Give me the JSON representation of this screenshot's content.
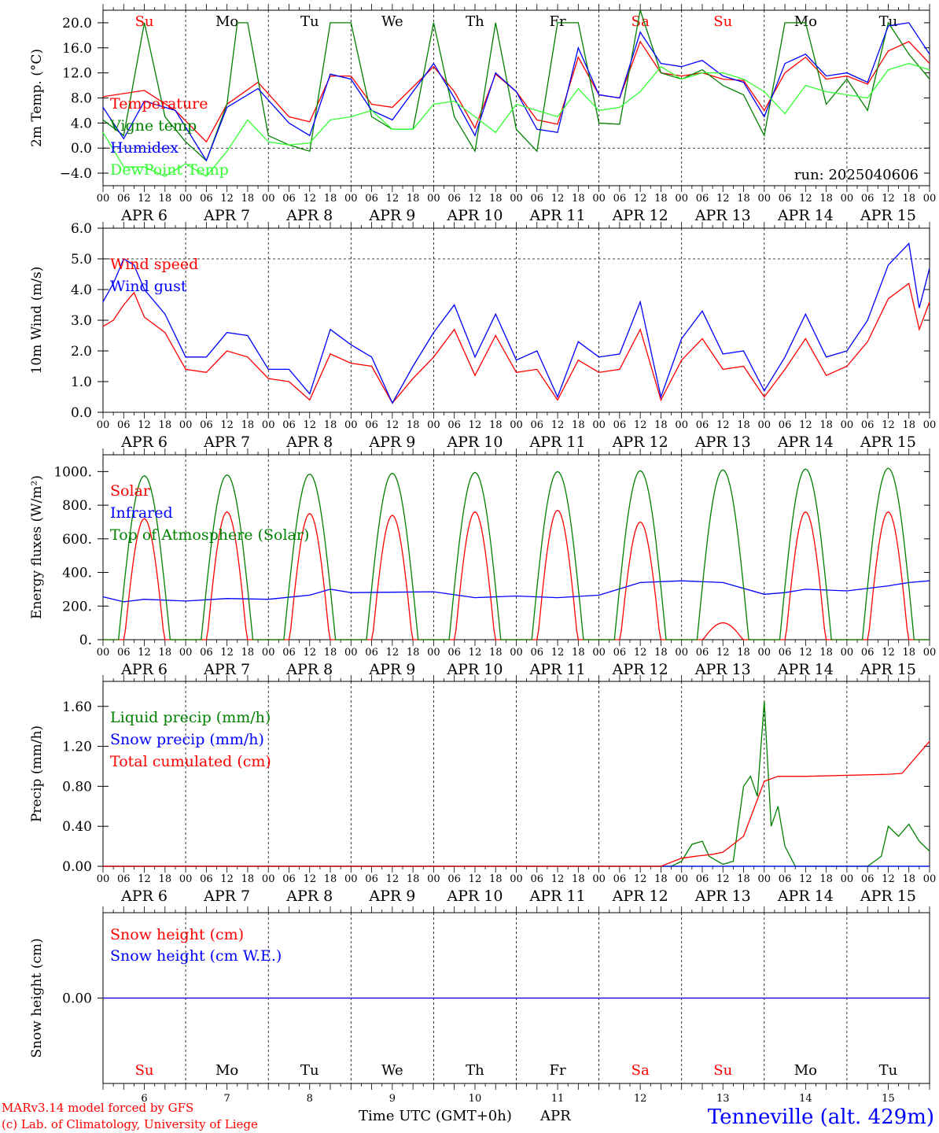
{
  "days": [
    {
      "label": "APR  6",
      "dow": "Su",
      "num": "6",
      "weekend": true
    },
    {
      "label": "APR  7",
      "dow": "Mo",
      "num": "7",
      "weekend": false
    },
    {
      "label": "APR  8",
      "dow": "Tu",
      "num": "8",
      "weekend": false
    },
    {
      "label": "APR  9",
      "dow": "We",
      "num": "9",
      "weekend": false
    },
    {
      "label": "APR 10",
      "dow": "Th",
      "num": "10",
      "weekend": false
    },
    {
      "label": "APR 11",
      "dow": "Fr",
      "num": "11",
      "weekend": false
    },
    {
      "label": "APR 12",
      "dow": "Sa",
      "num": "12",
      "weekend": true
    },
    {
      "label": "APR 13",
      "dow": "Su",
      "num": "13",
      "weekend": true
    },
    {
      "label": "APR 14",
      "dow": "Mo",
      "num": "14",
      "weekend": false
    },
    {
      "label": "APR 15",
      "dow": "Tu",
      "num": "15",
      "weekend": false
    }
  ],
  "hour_ticks": [
    "00",
    "06",
    "12",
    "18"
  ],
  "colors": {
    "red": "#ff0000",
    "green": "#008000",
    "blue": "#0000ff",
    "lightgreen": "#33ff33"
  },
  "footer": {
    "model": "MARv3.14 model forced by GFS",
    "credit": "(c) Lab. of Climatology, University of Liege",
    "xlabel": "Time UTC (GMT+0h)",
    "month": "APR",
    "location": "Tenneville (alt. 429m)"
  },
  "chart_data": [
    {
      "id": "temp",
      "type": "line",
      "ylabel": "2m Temp. (°C)",
      "ylim": [
        -6,
        22
      ],
      "yticks": [
        -4,
        0,
        4,
        8,
        12,
        16,
        20
      ],
      "ytick_labels": [
        "−4.0",
        "0.0",
        "4.0",
        "8.0",
        "12.0",
        "16.0",
        "20.0"
      ],
      "zero_line": 0,
      "annotation": "run: 2025040606",
      "series": [
        {
          "name": "Temperature",
          "color": "red",
          "x": [
            0,
            12,
            21,
            30,
            36,
            45,
            54,
            60,
            66,
            72,
            78,
            84,
            96,
            102,
            108,
            114,
            120,
            126,
            132,
            138,
            144,
            150,
            156,
            162,
            168,
            174,
            180,
            186,
            192,
            198,
            204,
            210,
            216,
            222,
            228,
            234,
            240
          ],
          "y": [
            8.2,
            9.2,
            6.0,
            1.0,
            7.0,
            10.5,
            5.0,
            4.2,
            11.5,
            11.5,
            7.0,
            6.5,
            13.0,
            9.0,
            3.2,
            11.8,
            9.0,
            4.5,
            3.8,
            14.5,
            8.5,
            8.0,
            17.0,
            12.0,
            11.5,
            12.0,
            11.0,
            10.8,
            6.0,
            12.0,
            14.5,
            11.0,
            11.5,
            10.2,
            15.5,
            17.0,
            13.5
          ]
        },
        {
          "name": "Vigne temp",
          "color": "green",
          "x": [
            0,
            6,
            12,
            18,
            24,
            30,
            36,
            39,
            42,
            48,
            54,
            60,
            66,
            72,
            78,
            84,
            90,
            96,
            102,
            108,
            114,
            120,
            126,
            132,
            138,
            144,
            150,
            156,
            162,
            168,
            174,
            180,
            186,
            192,
            198,
            204,
            210,
            216,
            222,
            228,
            234,
            240
          ],
          "y": [
            4.5,
            2.0,
            20.0,
            5.0,
            1.0,
            -2.0,
            7.0,
            20.0,
            20.0,
            2.0,
            0.5,
            -0.5,
            20.0,
            20.0,
            5.0,
            3.0,
            3.0,
            20.0,
            5.0,
            -0.5,
            20.0,
            3.0,
            -0.5,
            20.0,
            20.0,
            4.0,
            3.8,
            22.0,
            12.0,
            11.0,
            12.5,
            10.0,
            8.5,
            2.0,
            20.0,
            20.0,
            7.0,
            11.0,
            6.0,
            20.0,
            15.0,
            11.0
          ]
        },
        {
          "name": "Humidex",
          "color": "blue",
          "x": [
            0,
            6,
            12,
            21,
            30,
            36,
            45,
            54,
            60,
            66,
            72,
            78,
            84,
            96,
            102,
            108,
            114,
            120,
            126,
            132,
            138,
            144,
            150,
            156,
            162,
            168,
            174,
            180,
            186,
            192,
            198,
            204,
            210,
            216,
            222,
            228,
            234,
            240
          ],
          "y": [
            6.5,
            1.5,
            7.5,
            6.0,
            -2.0,
            6.5,
            9.5,
            4.0,
            2.0,
            11.8,
            11.0,
            6.0,
            4.5,
            13.5,
            8.0,
            2.0,
            12.0,
            9.0,
            3.0,
            2.5,
            16.0,
            8.5,
            8.0,
            18.5,
            13.5,
            13.0,
            14.0,
            11.5,
            10.5,
            5.0,
            13.5,
            15.0,
            11.5,
            12.0,
            10.5,
            19.5,
            20.0,
            15.0
          ]
        },
        {
          "name": "DewPoint Temp",
          "color": "lightgreen",
          "x": [
            0,
            6,
            12,
            18,
            24,
            30,
            36,
            42,
            48,
            54,
            60,
            66,
            72,
            78,
            84,
            90,
            96,
            102,
            108,
            114,
            120,
            126,
            132,
            138,
            144,
            150,
            156,
            162,
            168,
            174,
            180,
            186,
            192,
            198,
            204,
            210,
            216,
            222,
            228,
            234,
            240
          ],
          "y": [
            2.5,
            -3.0,
            -3.0,
            -4.5,
            -2.5,
            -4.5,
            -0.5,
            4.5,
            1.0,
            0.5,
            0.8,
            4.5,
            5.0,
            6.0,
            3.0,
            3.0,
            7.0,
            7.5,
            5.0,
            2.5,
            7.0,
            6.0,
            5.0,
            9.5,
            6.0,
            6.5,
            9.0,
            13.0,
            11.0,
            12.0,
            12.0,
            11.0,
            9.0,
            5.5,
            10.0,
            9.0,
            8.5,
            8.0,
            12.5,
            13.5,
            12.5
          ]
        }
      ]
    },
    {
      "id": "wind",
      "type": "line",
      "ylabel": "10m Wind (m/s)",
      "ylim": [
        0,
        6
      ],
      "yticks": [
        0,
        1,
        2,
        3,
        4,
        5,
        6
      ],
      "ytick_labels": [
        "0.0",
        "1.0",
        "2.0",
        "3.0",
        "4.0",
        "5.0",
        "6.0"
      ],
      "ref_line": 5,
      "series": [
        {
          "name": "Wind speed",
          "color": "red",
          "x": [
            0,
            3,
            6,
            9,
            12,
            18,
            24,
            30,
            36,
            42,
            48,
            54,
            60,
            66,
            72,
            78,
            84,
            90,
            96,
            102,
            108,
            114,
            120,
            126,
            132,
            138,
            144,
            150,
            156,
            162,
            168,
            174,
            180,
            186,
            192,
            198,
            204,
            210,
            216,
            222,
            228,
            234,
            237,
            240
          ],
          "y": [
            2.8,
            3.0,
            3.5,
            3.9,
            3.1,
            2.6,
            1.4,
            1.3,
            2.0,
            1.8,
            1.1,
            1.0,
            0.4,
            1.9,
            1.6,
            1.5,
            0.3,
            1.1,
            1.8,
            2.7,
            1.2,
            2.5,
            1.3,
            1.4,
            0.4,
            1.7,
            1.3,
            1.4,
            2.7,
            0.4,
            1.7,
            2.4,
            1.4,
            1.5,
            0.5,
            1.4,
            2.4,
            1.2,
            1.5,
            2.3,
            3.7,
            4.2,
            2.7,
            3.6
          ]
        },
        {
          "name": "Wind gust",
          "color": "blue",
          "x": [
            0,
            3,
            6,
            9,
            12,
            18,
            24,
            30,
            36,
            42,
            48,
            54,
            60,
            66,
            72,
            78,
            84,
            90,
            96,
            102,
            108,
            114,
            120,
            126,
            132,
            138,
            144,
            150,
            156,
            162,
            168,
            174,
            180,
            186,
            192,
            198,
            204,
            210,
            216,
            222,
            228,
            234,
            237,
            240
          ],
          "y": [
            3.6,
            4.2,
            5.0,
            4.8,
            4.0,
            3.2,
            1.8,
            1.8,
            2.6,
            2.5,
            1.4,
            1.4,
            0.6,
            2.7,
            2.2,
            1.8,
            0.3,
            1.5,
            2.6,
            3.5,
            1.8,
            3.2,
            1.7,
            2.0,
            0.5,
            2.3,
            1.8,
            1.9,
            3.6,
            0.5,
            2.4,
            3.3,
            1.9,
            2.0,
            0.7,
            1.8,
            3.2,
            1.8,
            2.0,
            3.0,
            4.8,
            5.5,
            3.4,
            4.7
          ]
        }
      ]
    },
    {
      "id": "flux",
      "type": "line",
      "ylabel": "Energy fluxes (W/m²)",
      "ylim": [
        0,
        1100
      ],
      "yticks": [
        0,
        200,
        400,
        600,
        800,
        1000
      ],
      "ytick_labels": [
        "0.",
        "200.",
        "400.",
        "600.",
        "800.",
        "1000."
      ],
      "series": [
        {
          "name": "Solar",
          "color": "red",
          "peaks": [
            720,
            760,
            750,
            740,
            760,
            770,
            700,
            100,
            760,
            760
          ]
        },
        {
          "name": "Infrared",
          "color": "blue",
          "x": [
            0,
            6,
            12,
            24,
            36,
            48,
            60,
            66,
            72,
            96,
            108,
            120,
            132,
            144,
            156,
            168,
            180,
            192,
            198,
            204,
            216,
            228,
            234,
            240
          ],
          "y": [
            255,
            225,
            240,
            230,
            245,
            240,
            265,
            300,
            280,
            285,
            250,
            260,
            250,
            265,
            340,
            350,
            340,
            270,
            280,
            300,
            290,
            320,
            340,
            350
          ]
        },
        {
          "name": "Top of Atmosphere (Solar)",
          "color": "green",
          "peaks": [
            975,
            980,
            985,
            990,
            995,
            1000,
            1005,
            1010,
            1015,
            1020
          ]
        }
      ]
    },
    {
      "id": "precip",
      "type": "line",
      "ylabel": "Precip (mm/h)",
      "ylim": [
        0,
        1.85
      ],
      "yticks": [
        0,
        0.4,
        0.8,
        1.2,
        1.6
      ],
      "ytick_labels": [
        "0.00",
        "0.40",
        "0.80",
        "1.20",
        "1.60"
      ],
      "series": [
        {
          "name": "Liquid precip (mm/h)",
          "color": "green",
          "x": [
            0,
            165,
            168,
            171,
            174,
            176,
            180,
            183,
            186,
            188,
            190,
            192,
            194,
            196,
            198,
            201,
            240
          ],
          "y": [
            0,
            0,
            0.05,
            0.22,
            0.25,
            0.1,
            0.02,
            0.05,
            0.8,
            0.9,
            0.7,
            1.65,
            0.4,
            0.6,
            0.2,
            0,
            0
          ],
          "tail_x": [
            0,
            210,
            222,
            226,
            228,
            231,
            234,
            237,
            240
          ],
          "tail_y": [
            0,
            0,
            0,
            0.1,
            0.4,
            0.3,
            0.42,
            0.25,
            0.15
          ]
        },
        {
          "name": "Snow precip (mm/h)",
          "color": "blue",
          "x": [
            0,
            240
          ],
          "y": [
            0,
            0
          ]
        },
        {
          "name": "Total cumulated (cm)",
          "color": "red",
          "x": [
            0,
            162,
            168,
            172,
            177,
            180,
            186,
            192,
            196,
            198,
            204,
            228,
            232,
            240
          ],
          "y": [
            0,
            0,
            0.08,
            0.1,
            0.12,
            0.14,
            0.3,
            0.85,
            0.9,
            0.9,
            0.9,
            0.92,
            0.93,
            1.25
          ]
        }
      ]
    },
    {
      "id": "snow",
      "type": "line",
      "ylabel": "Snow height (cm)",
      "ylim": [
        -1,
        1
      ],
      "yticks": [
        0
      ],
      "ytick_labels": [
        "0.00"
      ],
      "series": [
        {
          "name": "Snow height (cm)",
          "color": "red",
          "x": [
            0,
            240
          ],
          "y": [
            0,
            0
          ]
        },
        {
          "name": "Snow height (cm W.E.)",
          "color": "blue",
          "x": [
            0,
            240
          ],
          "y": [
            0,
            0
          ]
        }
      ]
    }
  ]
}
